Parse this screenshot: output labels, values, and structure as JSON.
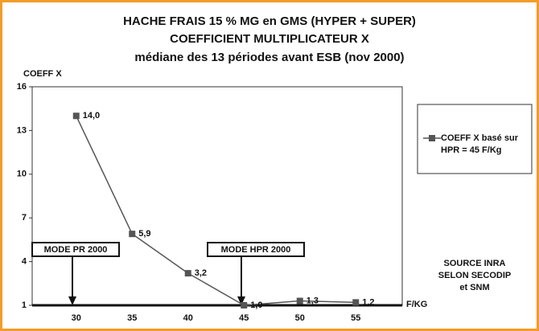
{
  "chart_data": {
    "type": "line",
    "title": [
      "HACHE FRAIS 15 % MG en GMS (HYPER + SUPER)",
      "COEFFICIENT MULTIPLICATEUR X",
      "médiane des 13 périodes avant ESB (nov 2000)"
    ],
    "ylabel": "COEFF X",
    "xlabel": "F/KG",
    "categories": [
      "30",
      "35",
      "40",
      "45",
      "50",
      "55"
    ],
    "series": [
      {
        "name": "COEFF X basé sur HPR = 45 F/Kg",
        "color": "#555555",
        "values": [
          14.0,
          5.9,
          3.2,
          1.0,
          1.3,
          1.2
        ],
        "value_labels": [
          "14,0",
          "5,9",
          "3,2",
          "1,0",
          "1,3",
          "1,2"
        ]
      }
    ],
    "ylim": [
      1,
      16
    ],
    "yticks": [
      1,
      4,
      7,
      10,
      13,
      16
    ],
    "grid": false,
    "legend": "right",
    "annotations": [
      "MODE PR 2000",
      "MODE HPR 2000"
    ],
    "source": [
      "SOURCE INRA",
      "SELON SECODIP",
      "et SNM"
    ]
  }
}
